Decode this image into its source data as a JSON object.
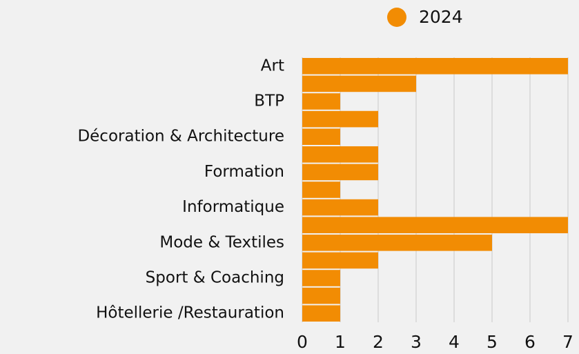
{
  "chart_data": {
    "type": "bar",
    "orientation": "horizontal",
    "categories": [
      "Art",
      null,
      "BTP",
      null,
      "Décoration & Architecture",
      null,
      "Formation",
      null,
      "Informatique",
      null,
      "Mode & Textiles",
      null,
      "Sport & Coaching",
      null,
      "Hôtellerie /Restauration"
    ],
    "series": [
      {
        "name": "2024",
        "color": "#f28c03",
        "values": [
          7,
          3,
          1,
          2,
          1,
          2,
          2,
          1,
          2,
          7,
          5,
          2,
          1,
          1,
          1
        ]
      }
    ],
    "xlim": [
      0,
      7
    ],
    "xticks": [
      0,
      1,
      2,
      3,
      4,
      5,
      6,
      7
    ],
    "grid": true,
    "legend": "top"
  }
}
